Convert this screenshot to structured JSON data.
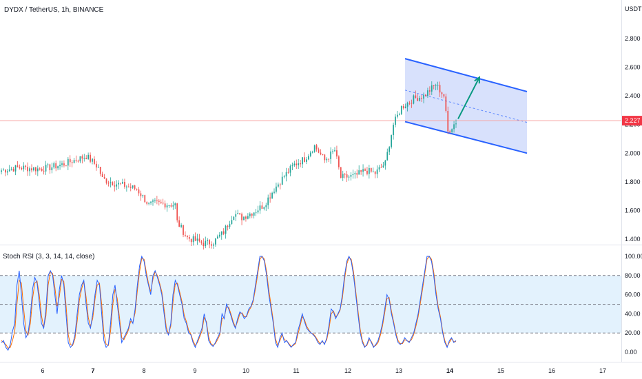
{
  "header": {
    "title": "DYDX / TetherUS, 1h, BINANCE",
    "currency": "USDT"
  },
  "price_axis": {
    "ticks": [
      "2.800",
      "2.600",
      "2.400",
      "2.200",
      "2.000",
      "1.800",
      "1.600",
      "1.400"
    ],
    "current_price_label": "2.227"
  },
  "indicator": {
    "title": "Stoch RSI (3, 3, 14, 14, close)",
    "ticks": [
      "100.00",
      "80.00",
      "60.00",
      "40.00",
      "20.00",
      "0.00"
    ]
  },
  "time_axis": {
    "labels": [
      "6",
      "7",
      "8",
      "9",
      "10",
      "11",
      "12",
      "13",
      "14",
      "15",
      "16",
      "17"
    ],
    "bold_labels": [
      "7",
      "14"
    ]
  },
  "colors": {
    "up": "#26a69a",
    "down": "#ef5350",
    "channel_line": "#2962ff",
    "channel_fill": "#d1dcfb",
    "arrow": "#089981",
    "k_line": "#2962ff",
    "d_line": "#ff6d00",
    "rsi_band": "#e3f2fd",
    "price_line": "#f7a4a0"
  },
  "chart_data": [
    {
      "type": "candlestick",
      "title": "DYDX / TetherUS, 1h, BINANCE",
      "ylabel": "USDT",
      "ylim": [
        1.38,
        2.92
      ],
      "x_labels": [
        "6",
        "7",
        "8",
        "9",
        "10",
        "11",
        "12",
        "13",
        "14",
        "15",
        "16",
        "17"
      ],
      "current_price": 2.227,
      "keyframes": [
        [
          0,
          1.88
        ],
        [
          9,
          1.9
        ],
        [
          18,
          1.89
        ],
        [
          24,
          1.9
        ],
        [
          30,
          1.92
        ],
        [
          36,
          1.95
        ],
        [
          42,
          1.98
        ],
        [
          48,
          1.9
        ],
        [
          50,
          1.82
        ],
        [
          56,
          1.79
        ],
        [
          62,
          1.77
        ],
        [
          67,
          1.75
        ],
        [
          73,
          1.64
        ],
        [
          76,
          1.65
        ],
        [
          86,
          1.64
        ],
        [
          87,
          1.52
        ],
        [
          92,
          1.41
        ],
        [
          96,
          1.39
        ],
        [
          100,
          1.37
        ],
        [
          105,
          1.38
        ],
        [
          110,
          1.45
        ],
        [
          115,
          1.58
        ],
        [
          119,
          1.55
        ],
        [
          126,
          1.6
        ],
        [
          130,
          1.64
        ],
        [
          135,
          1.75
        ],
        [
          140,
          1.84
        ],
        [
          145,
          1.92
        ],
        [
          150,
          1.96
        ],
        [
          155,
          2.05
        ],
        [
          160,
          1.95
        ],
        [
          165,
          2.02
        ],
        [
          168,
          1.83
        ],
        [
          175,
          1.84
        ],
        [
          180,
          1.88
        ],
        [
          185,
          1.86
        ],
        [
          190,
          1.93
        ],
        [
          194,
          2.2
        ],
        [
          198,
          2.32
        ],
        [
          204,
          2.38
        ],
        [
          209,
          2.4
        ],
        [
          215,
          2.48
        ],
        [
          219,
          2.4
        ],
        [
          221,
          2.15
        ],
        [
          225,
          2.22
        ]
      ],
      "channel": {
        "upper_start": [
          1.3,
          2.66
        ],
        "upper_end": [
          12.4,
          2.43
        ],
        "lower_start": [
          1.3,
          2.22
        ],
        "lower_end": [
          12.4,
          2.0
        ],
        "arrow_to": 2.53
      }
    },
    {
      "type": "line",
      "title": "Stoch RSI (3, 3, 14, 14, close)",
      "ylim": [
        0,
        100
      ],
      "levels": [
        80,
        50,
        20
      ],
      "series": [
        {
          "values": [
            10,
            12,
            5,
            2,
            8,
            22,
            30,
            70,
            85,
            60,
            30,
            15,
            20,
            38,
            66,
            78,
            72,
            52,
            30,
            25,
            45,
            80,
            85,
            80,
            60,
            40,
            65,
            80,
            70,
            40,
            10,
            5,
            8,
            18,
            40,
            60,
            70,
            75,
            50,
            30,
            25,
            40,
            60,
            75,
            70,
            40,
            12,
            5,
            8,
            30,
            60,
            70,
            50,
            30,
            10,
            15,
            20,
            25,
            35,
            30,
            45,
            70,
            90,
            100,
            95,
            80,
            70,
            60,
            80,
            85,
            78,
            70,
            60,
            40,
            22,
            18,
            30,
            60,
            75,
            70,
            60,
            50,
            35,
            30,
            20,
            18,
            10,
            5,
            12,
            18,
            25,
            40,
            30,
            12,
            8,
            6,
            10,
            15,
            20,
            40,
            35,
            50,
            45,
            38,
            30,
            25,
            35,
            42,
            40,
            35,
            38,
            45,
            48,
            55,
            70,
            85,
            100,
            100,
            95,
            80,
            60,
            45,
            30,
            10,
            5,
            15,
            20,
            10,
            12,
            8,
            5,
            8,
            10,
            22,
            30,
            40,
            32,
            25,
            22,
            20,
            18,
            15,
            10,
            8,
            12,
            8,
            15,
            28,
            45,
            42,
            35,
            40,
            45,
            60,
            80,
            95,
            100,
            95,
            80,
            60,
            40,
            20,
            10,
            5,
            8,
            15,
            10,
            5,
            8,
            12,
            20,
            30,
            45,
            60,
            55,
            40,
            30,
            18,
            10,
            8,
            10,
            15,
            12,
            10,
            15,
            20,
            30,
            40,
            55,
            70,
            85,
            100,
            100,
            95,
            80,
            60,
            45,
            35,
            20,
            10,
            5,
            12,
            15,
            10,
            12
          ],
          "d_values": [
            12,
            10,
            8,
            4,
            5,
            12,
            22,
            50,
            75,
            72,
            45,
            22,
            18,
            30,
            56,
            72,
            74,
            60,
            38,
            26,
            38,
            70,
            84,
            82,
            68,
            48,
            58,
            76,
            74,
            50,
            18,
            8,
            7,
            14,
            32,
            54,
            66,
            74,
            58,
            36,
            27,
            35,
            55,
            70,
            72,
            50,
            20,
            8,
            7,
            22,
            50,
            66,
            56,
            36,
            15,
            13,
            18,
            23,
            32,
            31,
            41,
            64,
            84,
            98,
            97,
            84,
            72,
            63,
            76,
            84,
            80,
            72,
            63,
            45,
            26,
            19,
            27,
            52,
            71,
            72,
            63,
            53,
            39,
            32,
            23,
            19,
            12,
            7,
            10,
            16,
            22,
            36,
            32,
            16,
            9,
            7,
            9,
            13,
            18,
            35,
            36,
            47,
            47,
            40,
            32,
            26,
            32,
            40,
            41,
            37,
            37,
            43,
            47,
            53,
            66,
            81,
            97,
            100,
            97,
            84,
            65,
            49,
            33,
            14,
            7,
            12,
            18,
            13,
            12,
            9,
            6,
            7,
            9,
            18,
            27,
            37,
            34,
            27,
            23,
            20,
            19,
            16,
            12,
            9,
            11,
            9,
            13,
            24,
            40,
            43,
            37,
            39,
            44,
            56,
            76,
            92,
            99,
            97,
            84,
            64,
            44,
            24,
            12,
            6,
            7,
            13,
            11,
            6,
            7,
            10,
            17,
            27,
            41,
            56,
            57,
            43,
            32,
            20,
            12,
            9,
            9,
            13,
            12,
            11,
            13,
            18,
            27,
            37,
            51,
            66,
            82,
            97,
            100,
            97,
            84,
            64,
            48,
            37,
            22,
            12,
            6,
            10,
            14,
            11,
            11
          ],
          "note": "lengths ~ candle count; values on 0..100 scale"
        }
      ]
    }
  ]
}
